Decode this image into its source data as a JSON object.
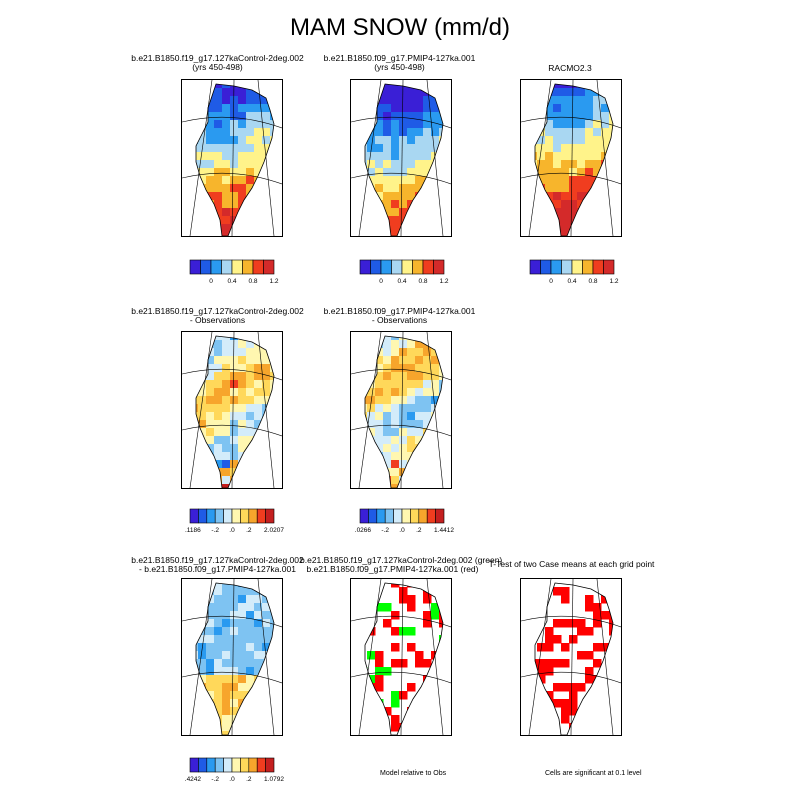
{
  "figure_title": "MAM SNOW (mm/d)",
  "palette": {
    "mean": [
      "#3a1fd6",
      "#1f5be6",
      "#2a9af0",
      "#a9d7f2",
      "#fff38a",
      "#f7b52c",
      "#f03d1f",
      "#d42a2a"
    ],
    "diff": [
      "#3a1fd6",
      "#1f5be6",
      "#2a9af0",
      "#7ec3f2",
      "#d3ecfa",
      "#fff7b0",
      "#ffd85a",
      "#f7a52c",
      "#f03d1f",
      "#c41f1f"
    ],
    "sig_green": "#00ff00",
    "sig_red": "#ff0000"
  },
  "panels": [
    {
      "title_line1": "b.e21.B1850.f19_g17.127kaControl-2deg.002",
      "title_line2": "(yrs 450-498)",
      "field": "mean",
      "variant": 0
    },
    {
      "title_line1": "b.e21.B1850.f09_g17.PMIP4-127ka.001",
      "title_line2": "(yrs 450-498)",
      "field": "mean",
      "variant": 1
    },
    {
      "title_line1": "RACMO2.3",
      "title_line2": "",
      "field": "mean",
      "variant": 2
    },
    {
      "title_line1": "b.e21.B1850.f19_g17.127kaControl-2deg.002",
      "title_line2": "- Observations",
      "field": "diffobs",
      "variant": 3
    },
    {
      "title_line1": "b.e21.B1850.f09_g17.PMIP4-127ka.001",
      "title_line2": "- Observations",
      "field": "diffobs",
      "variant": 4
    },
    {
      "title_line1": "b.e21.B1850.f19_g17.127kaControl-2deg.002",
      "title_line2": "- b.e21.B1850.f09_g17.PMIP4-127ka.001",
      "field": "diffcase",
      "variant": 5
    },
    {
      "title_line1": "b.e21.B1850.f19_g17.127kaControl-2deg.002 (green)",
      "title_line2": "b.e21.B1850.f09_g17.PMIP4-127ka.001 (red)",
      "field": "relobs",
      "variant": 6
    },
    {
      "title_line1": "T-Test of two Case means at each grid point",
      "title_line2": "",
      "field": "ttest",
      "variant": 7
    }
  ],
  "colorbars": [
    {
      "labels": [
        "0",
        "0.4",
        "0.8",
        "1.2"
      ]
    },
    {
      "labels": [
        "0",
        "0.4",
        "0.8",
        "1.2"
      ]
    },
    {
      "labels": [
        "0",
        "0.4",
        "0.8",
        "1.2"
      ]
    },
    {
      "labels": [
        "-6.1186",
        "-.2",
        ".0",
        ".2",
        "2.0207"
      ]
    },
    {
      "labels": [
        "-6.0266",
        "-.2",
        ".0",
        ".2",
        "1.4412"
      ]
    },
    {
      "labels": [
        "-3.4242",
        "-.2",
        ".0",
        ".2",
        "1.0792"
      ]
    }
  ],
  "notes": {
    "relobs": "Model relative to Obs",
    "ttest": "Cells are significant at 0.1 level"
  }
}
